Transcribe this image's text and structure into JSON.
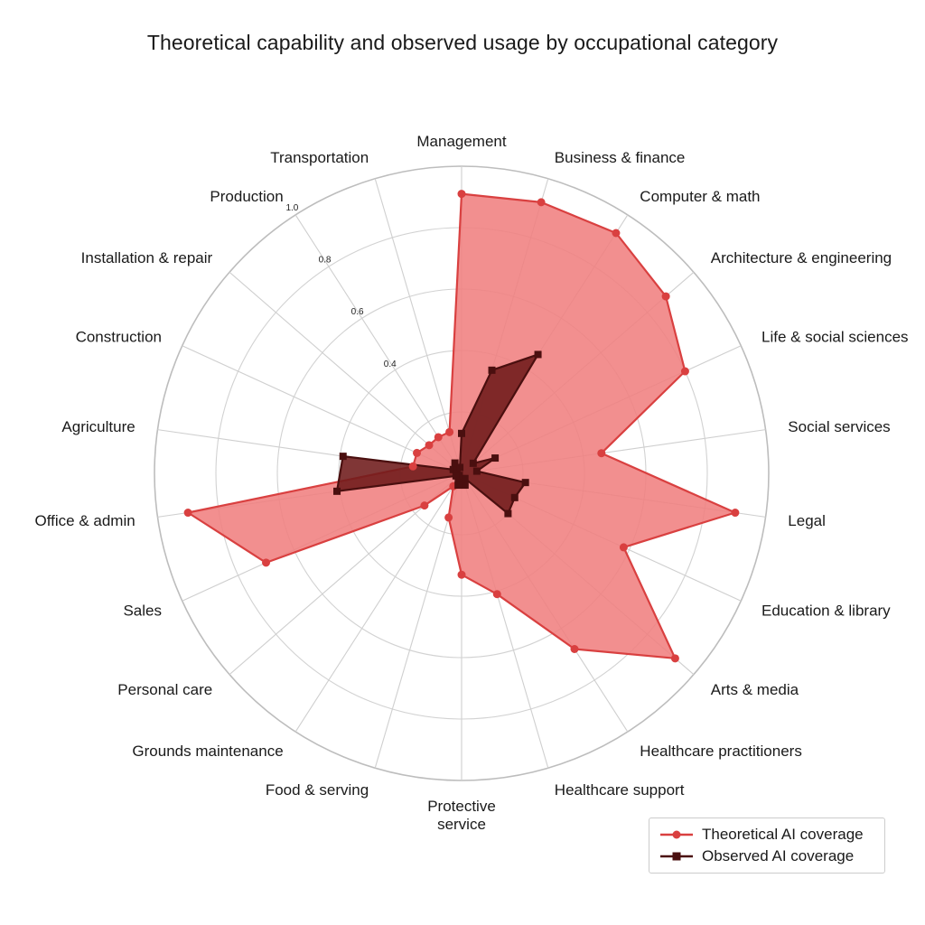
{
  "chart_data": {
    "type": "radar",
    "title": "Theoretical capability and observed usage by occupational category",
    "categories": [
      "Management",
      "Business & finance",
      "Computer & math",
      "Architecture & engineering",
      "Life & social sciences",
      "Social services",
      "Legal",
      "Education & library",
      "Arts & media",
      "Healthcare practitioners",
      "Healthcare support",
      "Protective service",
      "Food & serving",
      "Grounds maintenance",
      "Personal care",
      "Sales",
      "Office & admin",
      "Agriculture",
      "Construction",
      "Installation & repair",
      "Production",
      "Transportation"
    ],
    "radial_ticks": [
      "0.4",
      "0.6",
      "0.8",
      "1.0"
    ],
    "rlim": [
      0,
      1.0
    ],
    "grid": true,
    "legend_position": "bottom-right",
    "series": [
      {
        "name": "Theoretical AI coverage",
        "color": "#d94040",
        "fill": "#f08080",
        "marker": "circle",
        "values": [
          0.91,
          0.92,
          0.93,
          0.88,
          0.8,
          0.46,
          0.9,
          0.58,
          0.92,
          0.68,
          0.41,
          0.33,
          0.15,
          0.05,
          0.16,
          0.7,
          0.9,
          0.16,
          0.16,
          0.14,
          0.14,
          0.14
        ]
      },
      {
        "name": "Observed AI coverage",
        "color": "#4a0f0f",
        "fill": "#6e1a1a",
        "marker": "square",
        "values": [
          0.13,
          0.35,
          0.46,
          0.05,
          0.12,
          0.05,
          0.21,
          0.19,
          0.2,
          0.02,
          0.04,
          0.02,
          0.04,
          0.02,
          0.01,
          0.02,
          0.41,
          0.39,
          0.03,
          0.02,
          0.04,
          0.02
        ]
      }
    ]
  }
}
